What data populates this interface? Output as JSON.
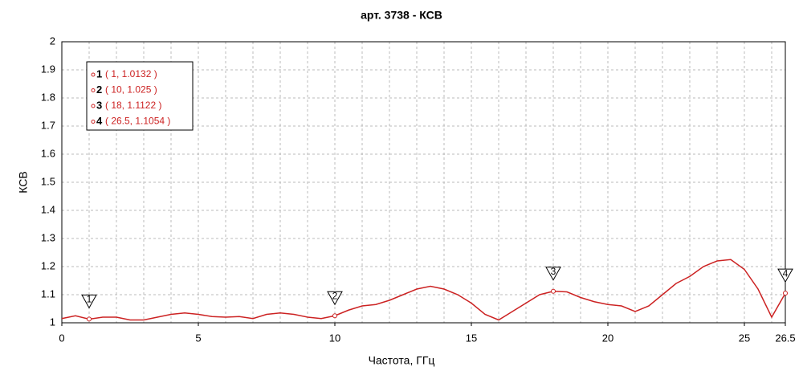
{
  "chart_data": {
    "type": "line",
    "title": "арт. 3738 - КСВ",
    "x_label": "Частота, ГГц",
    "y_label": "КСВ",
    "x": [
      0,
      0.5,
      1,
      1.5,
      2,
      2.5,
      3,
      3.5,
      4,
      4.5,
      5,
      5.5,
      6,
      6.5,
      7,
      7.5,
      8,
      8.5,
      9,
      9.5,
      10,
      10.5,
      11,
      11.5,
      12,
      12.5,
      13,
      13.5,
      14,
      14.5,
      15,
      15.5,
      16,
      16.5,
      17,
      17.5,
      18,
      18.5,
      19,
      19.5,
      20,
      20.5,
      21,
      21.5,
      22,
      22.5,
      23,
      23.5,
      24,
      24.5,
      25,
      25.5,
      26,
      26.5
    ],
    "series": [
      {
        "name": "КСВ",
        "color": "#cc2222",
        "values": [
          1.015,
          1.025,
          1.013,
          1.02,
          1.02,
          1.01,
          1.01,
          1.02,
          1.03,
          1.035,
          1.03,
          1.022,
          1.02,
          1.022,
          1.015,
          1.03,
          1.035,
          1.03,
          1.02,
          1.015,
          1.025,
          1.045,
          1.06,
          1.065,
          1.08,
          1.1,
          1.12,
          1.13,
          1.12,
          1.1,
          1.07,
          1.03,
          1.01,
          1.04,
          1.07,
          1.1,
          1.112,
          1.11,
          1.09,
          1.075,
          1.065,
          1.06,
          1.04,
          1.06,
          1.1,
          1.14,
          1.165,
          1.2,
          1.22,
          1.225,
          1.19,
          1.12,
          1.02,
          1.105
        ]
      }
    ],
    "markers": [
      {
        "label": "1",
        "x": 1,
        "y": 1.0132,
        "text": "( 1, 1.0132 )"
      },
      {
        "label": "2",
        "x": 10,
        "y": 1.025,
        "text": "( 10, 1.025 )"
      },
      {
        "label": "3",
        "x": 18,
        "y": 1.1122,
        "text": "( 18, 1.1122 )"
      },
      {
        "label": "4",
        "x": 26.5,
        "y": 1.1054,
        "text": "( 26.5, 1.1054 )"
      }
    ],
    "xlim": [
      0,
      26.5
    ],
    "ylim": [
      1,
      2
    ],
    "xticks": [
      0,
      5,
      10,
      15,
      20,
      25,
      26.5
    ],
    "yticks": [
      1,
      1.1,
      1.2,
      1.3,
      1.4,
      1.5,
      1.6,
      1.7,
      1.8,
      1.9,
      2
    ],
    "xgrid": [
      1,
      2,
      3,
      4,
      5,
      6,
      7,
      8,
      9,
      10,
      11,
      12,
      13,
      14,
      15,
      16,
      17,
      18,
      19,
      20,
      21,
      22,
      23,
      24,
      25,
      26
    ],
    "grid": true
  }
}
